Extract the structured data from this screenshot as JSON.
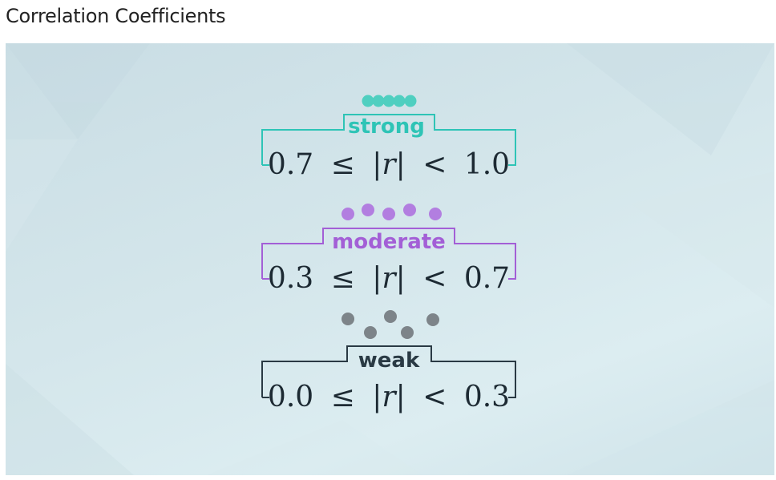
{
  "page": {
    "title": "Correlation Coefficients"
  },
  "categories": [
    {
      "label": "strong",
      "lower": "0.7",
      "rel1": "≤",
      "var": "|r|",
      "rel2": "<",
      "upper": "1.0",
      "color": "#2ec4b6"
    },
    {
      "label": "moderate",
      "lower": "0.3",
      "rel1": "≤",
      "var": "|r|",
      "rel2": "<",
      "upper": "0.7",
      "color": "#a35fd6"
    },
    {
      "label": "weak",
      "lower": "0.0",
      "rel1": "≤",
      "var": "|r|",
      "rel2": "<",
      "upper": "0.3",
      "color": "#2a3a44"
    }
  ],
  "colors": {
    "strong_dots": "#4fcfc0",
    "moderate_dots": "#b27ee0",
    "weak_dots": "#7d8489",
    "formula_text": "#1d2a33"
  }
}
